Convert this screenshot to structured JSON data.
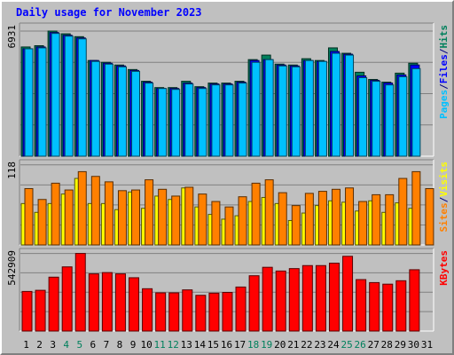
{
  "title": "Daily usage for November 2023",
  "colors": {
    "hits": "#00805c",
    "files": "#0000ff",
    "pages": "#00c0ff",
    "visits": "#ffff00",
    "sites": "#ff8000",
    "kbytes": "#ff0000",
    "weekend_label": "#00805c",
    "weekday_label": "#000000"
  },
  "chart_data": [
    {
      "type": "bar",
      "panel": "hits-files-pages",
      "categories": [
        "1",
        "2",
        "3",
        "4",
        "5",
        "6",
        "7",
        "8",
        "9",
        "10",
        "11",
        "12",
        "13",
        "14",
        "15",
        "16",
        "17",
        "18",
        "19",
        "20",
        "21",
        "22",
        "23",
        "24",
        "25",
        "26",
        "27",
        "28",
        "29",
        "30",
        "31"
      ],
      "weekend_days": [
        "4",
        "5",
        "11",
        "12",
        "18",
        "19",
        "25",
        "26"
      ],
      "ymax_label": "6931",
      "ylim": [
        0,
        6931
      ],
      "legend": [
        "Pages",
        "/",
        "Files",
        "/",
        "Hits"
      ],
      "series": [
        {
          "name": "Hits",
          "values": [
            6050,
            6120,
            6931,
            6780,
            6620,
            5300,
            5200,
            5050,
            4800,
            4150,
            3800,
            3800,
            4150,
            3850,
            4050,
            4050,
            4150,
            5350,
            5600,
            5100,
            5050,
            5400,
            5300,
            6000,
            5700,
            4650,
            4250,
            4100,
            4600,
            5150,
            null
          ]
        },
        {
          "name": "Files",
          "values": [
            5950,
            6050,
            6850,
            6700,
            6550,
            5300,
            5150,
            5000,
            4750,
            4100,
            3750,
            3750,
            4050,
            3800,
            4000,
            4000,
            4100,
            5300,
            5350,
            5050,
            5000,
            5300,
            5250,
            5800,
            5650,
            4450,
            4200,
            4050,
            4500,
            5050,
            null
          ]
        },
        {
          "name": "Pages",
          "values": [
            5950,
            6000,
            6800,
            6650,
            6500,
            5250,
            5100,
            4950,
            4700,
            4050,
            3750,
            3700,
            4000,
            3750,
            3950,
            3950,
            4050,
            5200,
            5350,
            5000,
            4950,
            5300,
            5250,
            5700,
            5600,
            4350,
            4150,
            3950,
            4400,
            4850,
            null
          ]
        }
      ]
    },
    {
      "type": "bar",
      "panel": "visits-sites",
      "categories": [
        "1",
        "2",
        "3",
        "4",
        "5",
        "6",
        "7",
        "8",
        "9",
        "10",
        "11",
        "12",
        "13",
        "14",
        "15",
        "16",
        "17",
        "18",
        "19",
        "20",
        "21",
        "22",
        "23",
        "24",
        "25",
        "26",
        "27",
        "28",
        "29",
        "30",
        "31"
      ],
      "ymax_label": "118",
      "ylim": [
        0,
        118
      ],
      "legend": [
        "Sites",
        "/",
        "Visits"
      ],
      "series": [
        {
          "name": "Visits",
          "values": [
            61,
            48,
            61,
            75,
            98,
            61,
            61,
            52,
            78,
            54,
            72,
            67,
            84,
            56,
            45,
            38,
            43,
            64,
            70,
            61,
            36,
            47,
            58,
            65,
            63,
            50,
            65,
            48,
            62,
            54,
            null
          ]
        },
        {
          "name": "Sites",
          "values": [
            83,
            67,
            91,
            81,
            108,
            101,
            93,
            80,
            81,
            96,
            82,
            72,
            85,
            75,
            64,
            56,
            71,
            91,
            96,
            77,
            58,
            76,
            79,
            82,
            84,
            64,
            74,
            74,
            98,
            108,
            83
          ]
        }
      ]
    },
    {
      "type": "bar",
      "panel": "kbytes",
      "categories": [
        "1",
        "2",
        "3",
        "4",
        "5",
        "6",
        "7",
        "8",
        "9",
        "10",
        "11",
        "12",
        "13",
        "14",
        "15",
        "16",
        "17",
        "18",
        "19",
        "20",
        "21",
        "22",
        "23",
        "24",
        "25",
        "26",
        "27",
        "28",
        "29",
        "30",
        "31"
      ],
      "ymax_label": "542909",
      "ylim": [
        0,
        542909
      ],
      "legend": [
        "KBytes"
      ],
      "series": [
        {
          "name": "KBytes",
          "values": [
            277000,
            285000,
            377000,
            449000,
            542909,
            400000,
            409000,
            400000,
            373000,
            296000,
            267000,
            267000,
            288000,
            250000,
            265000,
            270000,
            308000,
            387000,
            446000,
            420000,
            437000,
            458000,
            458000,
            475000,
            523000,
            360000,
            339000,
            328000,
            352000,
            429000,
            null
          ]
        }
      ]
    }
  ]
}
